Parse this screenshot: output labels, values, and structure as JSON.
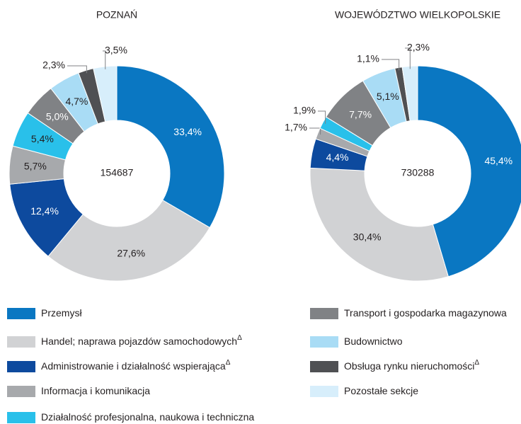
{
  "chart_data": [
    {
      "type": "pie",
      "title": "POZNAŃ",
      "center_label": 154687,
      "values": [
        33.4,
        27.6,
        12.4,
        5.7,
        5.4,
        5.0,
        4.7,
        2.3,
        3.5
      ],
      "value_labels": [
        "33,4%",
        "27,6%",
        "12,4%",
        "5,7%",
        "5,4%",
        "5,0%",
        "4,7%",
        "2,3%",
        "3,5%"
      ]
    },
    {
      "type": "pie",
      "title": "WOJEWÓDZTWO WIELKOPOLSKIE",
      "center_label": 730288,
      "values": [
        45.4,
        30.4,
        4.4,
        1.7,
        1.9,
        7.7,
        5.1,
        1.1,
        2.3
      ],
      "value_labels": [
        "45,4%",
        "30,4%",
        "4,4%",
        "1,7%",
        "1,9%",
        "7,7%",
        "5,1%",
        "1,1%",
        "2,3%"
      ]
    }
  ],
  "legend": {
    "items": [
      {
        "name": "Przemysł",
        "color": "#0a77c2"
      },
      {
        "name": "Handel; naprawa pojazdów samochodowych",
        "sup": "Δ",
        "color": "#d1d2d4"
      },
      {
        "name": "Administrowanie i działalność wspierająca",
        "sup": "Δ",
        "color": "#0d4a9e"
      },
      {
        "name": "Informacja i komunikacja",
        "color": "#a7a9ac"
      },
      {
        "name": "Działalność profesjonalna, naukowa i techniczna",
        "color": "#29c0ea"
      },
      {
        "name": "Transport i gospodarka magazynowa",
        "color": "#808285"
      },
      {
        "name": "Budownictwo",
        "color": "#a9dcf5"
      },
      {
        "name": "Obsługa rynku nieruchomości",
        "sup": "Δ",
        "color": "#4f5053"
      },
      {
        "name": "Pozostałe sekcje",
        "color": "#d7eefb"
      }
    ]
  }
}
